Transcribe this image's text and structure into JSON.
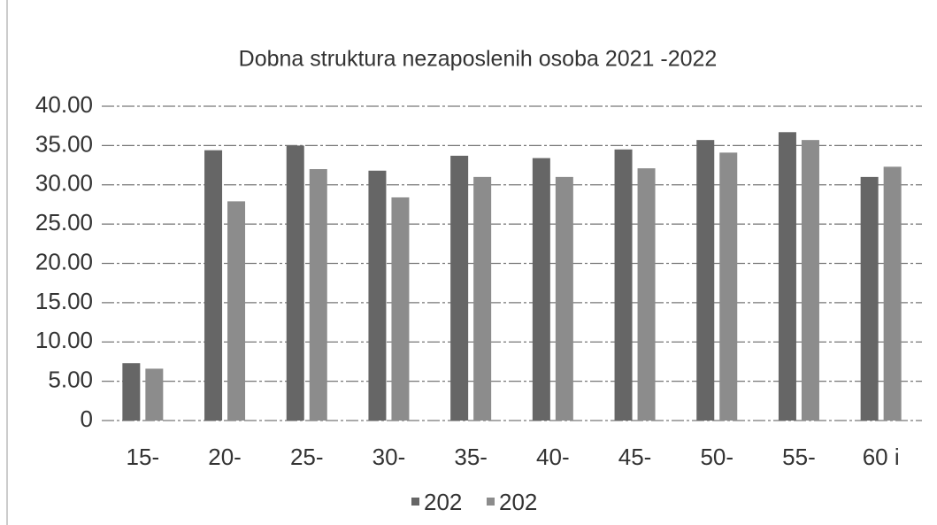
{
  "chart_data": {
    "type": "bar",
    "title": "Dobna struktura nezaposlenih osoba 2021 -2022",
    "categories": [
      "15-",
      "20-",
      "25-",
      "30-",
      "35-",
      "40-",
      "45-",
      "50-",
      "55-",
      "60 i"
    ],
    "series": [
      {
        "name": "202",
        "color": "#666666",
        "values": [
          7.3,
          34.4,
          35.0,
          31.8,
          33.7,
          33.4,
          34.5,
          35.7,
          36.7,
          31.0
        ]
      },
      {
        "name": "202",
        "color": "#8c8c8c",
        "values": [
          6.6,
          27.9,
          32.0,
          28.4,
          31.0,
          31.0,
          32.1,
          34.1,
          35.7,
          32.3
        ]
      }
    ],
    "ylim": [
      0,
      40
    ],
    "yticks": [
      0,
      {
        "value": 5,
        "label": "5.00"
      },
      {
        "value": 10,
        "label": "10.00"
      },
      {
        "value": 15,
        "label": "15.00"
      },
      {
        "value": 20,
        "label": "20.00"
      },
      {
        "value": 25,
        "label": "25.00"
      },
      {
        "value": 30,
        "label": "30.00"
      },
      {
        "value": 35,
        "label": "35.00"
      },
      {
        "value": 40,
        "label": "40.00"
      }
    ],
    "grid": true
  }
}
